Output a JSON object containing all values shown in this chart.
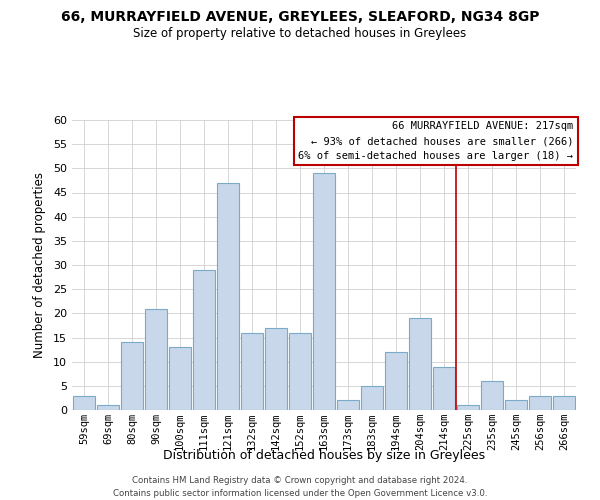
{
  "title": "66, MURRAYFIELD AVENUE, GREYLEES, SLEAFORD, NG34 8GP",
  "subtitle": "Size of property relative to detached houses in Greylees",
  "xlabel": "Distribution of detached houses by size in Greylees",
  "ylabel": "Number of detached properties",
  "bar_color": "#c8d8ea",
  "bar_edge_color": "#7aaac8",
  "categories": [
    "59sqm",
    "69sqm",
    "80sqm",
    "90sqm",
    "100sqm",
    "111sqm",
    "121sqm",
    "132sqm",
    "142sqm",
    "152sqm",
    "163sqm",
    "173sqm",
    "183sqm",
    "194sqm",
    "204sqm",
    "214sqm",
    "225sqm",
    "235sqm",
    "245sqm",
    "256sqm",
    "266sqm"
  ],
  "values": [
    3,
    1,
    14,
    21,
    13,
    29,
    47,
    16,
    17,
    16,
    49,
    2,
    5,
    12,
    19,
    9,
    1,
    6,
    2,
    3,
    3
  ],
  "ylim": [
    0,
    60
  ],
  "yticks": [
    0,
    5,
    10,
    15,
    20,
    25,
    30,
    35,
    40,
    45,
    50,
    55,
    60
  ],
  "vline_color": "#bb0000",
  "annotation_title": "66 MURRAYFIELD AVENUE: 217sqm",
  "annotation_line1": "← 93% of detached houses are smaller (266)",
  "annotation_line2": "6% of semi-detached houses are larger (18) →",
  "footer_line1": "Contains HM Land Registry data © Crown copyright and database right 2024.",
  "footer_line2": "Contains public sector information licensed under the Open Government Licence v3.0.",
  "background_color": "#ffffff",
  "grid_color": "#d0d0d0"
}
